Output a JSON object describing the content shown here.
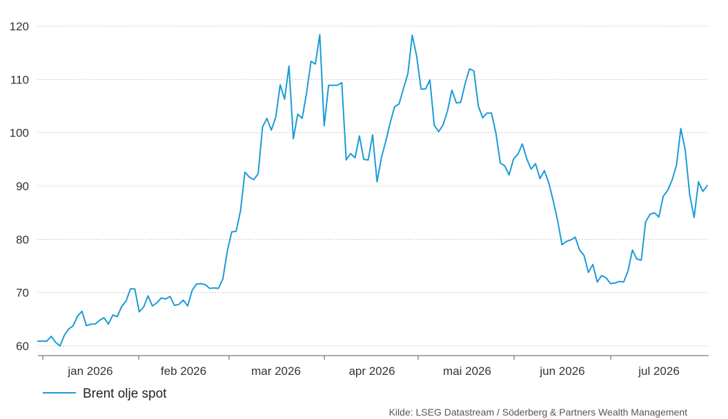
{
  "chart_data": {
    "type": "line",
    "title": "",
    "xlabel": "",
    "ylabel": "",
    "ylim": [
      58,
      121
    ],
    "yticks": [
      60,
      70,
      80,
      90,
      100,
      110,
      120
    ],
    "grid": "horizontal-dotted",
    "month_labels": [
      "jan 2026",
      "feb 2026",
      "mar 2026",
      "apr 2026",
      "mai 2026",
      "jun 2026",
      "jul 2026"
    ],
    "series": [
      {
        "name": "Brent olje spot",
        "color": "#1a9ad6",
        "values": [
          60.9,
          60.9,
          60.9,
          61.8,
          60.7,
          60.0,
          62.0,
          63.2,
          63.8,
          65.6,
          66.5,
          63.8,
          64.1,
          64.1,
          64.8,
          65.3,
          64.1,
          65.8,
          65.5,
          67.4,
          68.4,
          70.7,
          70.7,
          66.4,
          67.3,
          69.4,
          67.5,
          68.1,
          69.0,
          68.8,
          69.3,
          67.6,
          67.8,
          68.6,
          67.5,
          70.4,
          71.6,
          71.7,
          71.5,
          70.8,
          70.9,
          70.8,
          72.6,
          77.8,
          81.4,
          81.5,
          85.4,
          92.6,
          91.7,
          91.2,
          92.3,
          101.1,
          102.7,
          100.5,
          102.9,
          109.0,
          106.3,
          112.5,
          98.9,
          103.5,
          102.7,
          107.5,
          113.4,
          112.9,
          118.4,
          101.3,
          108.9,
          108.9,
          108.9,
          109.4,
          94.9,
          96.1,
          95.3,
          99.4,
          95.0,
          94.9,
          99.6,
          90.8,
          95.4,
          98.4,
          101.9,
          104.9,
          105.4,
          108.3,
          111.1,
          118.3,
          114.4,
          108.2,
          108.2,
          109.9,
          101.4,
          100.2,
          101.5,
          104.1,
          108.0,
          105.6,
          105.7,
          109.2,
          112.0,
          111.6,
          105.0,
          102.8,
          103.7,
          103.7,
          99.9,
          94.3,
          93.8,
          92.1,
          95.1,
          96.0,
          97.9,
          95.1,
          93.2,
          94.2,
          91.4,
          92.9,
          90.6,
          87.3,
          83.6,
          79.0,
          79.6,
          79.9,
          80.4,
          78.0,
          77.0,
          73.8,
          75.3,
          72.0,
          73.2,
          72.8,
          71.7,
          71.8,
          72.1,
          72.0,
          74.1,
          78.0,
          76.3,
          76.1,
          83.3,
          84.7,
          85.0,
          84.2,
          88.1,
          89.2,
          91.1,
          93.9,
          100.8,
          96.7,
          88.4,
          84.1,
          90.8,
          89.0,
          90.1
        ]
      }
    ]
  },
  "source": "Kilde: LSEG Datastream / Söderberg & Partners Wealth Management"
}
